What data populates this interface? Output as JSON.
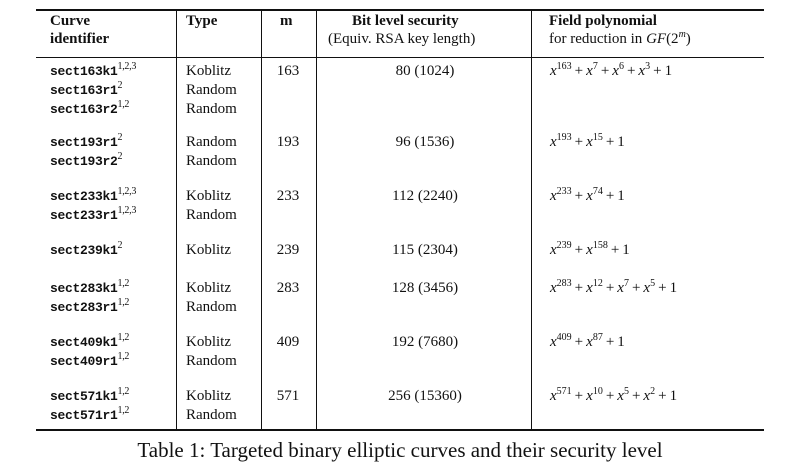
{
  "headers": {
    "curve_line1": "Curve",
    "curve_line2": "identifier",
    "type": "Type",
    "m": "m",
    "bls_line1": "Bit level security",
    "bls_line2": "(Equiv. RSA key length)",
    "fp_line1": "Field polynomial",
    "fp_line2_prefix": "for reduction in ",
    "fp_line2_math": "GF",
    "fp_line2_open": "(2",
    "fp_line2_sup": "m",
    "fp_line2_close": ")"
  },
  "groups": [
    {
      "m": "163",
      "security": "80 (1024)",
      "polynomial": [
        [
          "x",
          "163"
        ],
        [
          "x",
          "7"
        ],
        [
          "x",
          "6"
        ],
        [
          "x",
          "3"
        ],
        [
          "1",
          ""
        ]
      ],
      "curves": [
        {
          "name": "sect163k1",
          "sup": "1,2,3",
          "type": "Koblitz"
        },
        {
          "name": "sect163r1",
          "sup": "2",
          "type": "Random"
        },
        {
          "name": "sect163r2",
          "sup": "1,2",
          "type": "Random"
        }
      ]
    },
    {
      "m": "193",
      "security": "96 (1536)",
      "polynomial": [
        [
          "x",
          "193"
        ],
        [
          "x",
          "15"
        ],
        [
          "1",
          ""
        ]
      ],
      "curves": [
        {
          "name": "sect193r1",
          "sup": "2",
          "type": "Random"
        },
        {
          "name": "sect193r2",
          "sup": "2",
          "type": "Random"
        }
      ]
    },
    {
      "m": "233",
      "security": "112 (2240)",
      "polynomial": [
        [
          "x",
          "233"
        ],
        [
          "x",
          "74"
        ],
        [
          "1",
          ""
        ]
      ],
      "curves": [
        {
          "name": "sect233k1",
          "sup": "1,2,3",
          "type": "Koblitz"
        },
        {
          "name": "sect233r1",
          "sup": "1,2,3",
          "type": "Random"
        }
      ]
    },
    {
      "m": "239",
      "security": "115 (2304)",
      "polynomial": [
        [
          "x",
          "239"
        ],
        [
          "x",
          "158"
        ],
        [
          "1",
          ""
        ]
      ],
      "curves": [
        {
          "name": "sect239k1",
          "sup": "2",
          "type": "Koblitz"
        }
      ]
    },
    {
      "m": "283",
      "security": "128 (3456)",
      "polynomial": [
        [
          "x",
          "283"
        ],
        [
          "x",
          "12"
        ],
        [
          "x",
          "7"
        ],
        [
          "x",
          "5"
        ],
        [
          "1",
          ""
        ]
      ],
      "curves": [
        {
          "name": "sect283k1",
          "sup": "1,2",
          "type": "Koblitz"
        },
        {
          "name": "sect283r1",
          "sup": "1,2",
          "type": "Random"
        }
      ]
    },
    {
      "m": "409",
      "security": "192 (7680)",
      "polynomial": [
        [
          "x",
          "409"
        ],
        [
          "x",
          "87"
        ],
        [
          "1",
          ""
        ]
      ],
      "curves": [
        {
          "name": "sect409k1",
          "sup": "1,2",
          "type": "Koblitz"
        },
        {
          "name": "sect409r1",
          "sup": "1,2",
          "type": "Random"
        }
      ]
    },
    {
      "m": "571",
      "security": "256 (15360)",
      "polynomial": [
        [
          "x",
          "571"
        ],
        [
          "x",
          "10"
        ],
        [
          "x",
          "5"
        ],
        [
          "x",
          "2"
        ],
        [
          "1",
          ""
        ]
      ],
      "curves": [
        {
          "name": "sect571k1",
          "sup": "1,2",
          "type": "Koblitz"
        },
        {
          "name": "sect571r1",
          "sup": "1,2",
          "type": "Random"
        }
      ]
    }
  ],
  "caption": "Table 1: Targeted binary elliptic curves and their security level"
}
